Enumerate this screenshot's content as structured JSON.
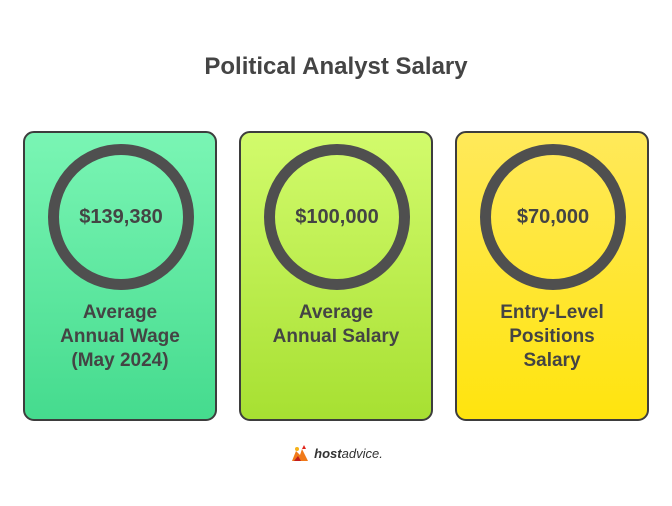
{
  "title": "Political Analyst Salary",
  "cards": [
    {
      "value": "$139,380",
      "label_lines": [
        "Average",
        "Annual Wage",
        "(May 2024)"
      ]
    },
    {
      "value": "$100,000",
      "label_lines": [
        "Average",
        "Annual Salary"
      ]
    },
    {
      "value": "$70,000",
      "label_lines": [
        "Entry-Level",
        "Positions",
        "Salary"
      ]
    }
  ],
  "brand": {
    "bold": "host",
    "rest": "advice."
  },
  "colors": {
    "card_1": "#45db8e",
    "card_2": "#a7e032",
    "card_3": "#ffe40e",
    "ring": "#4f4f4f",
    "text": "#444444"
  }
}
